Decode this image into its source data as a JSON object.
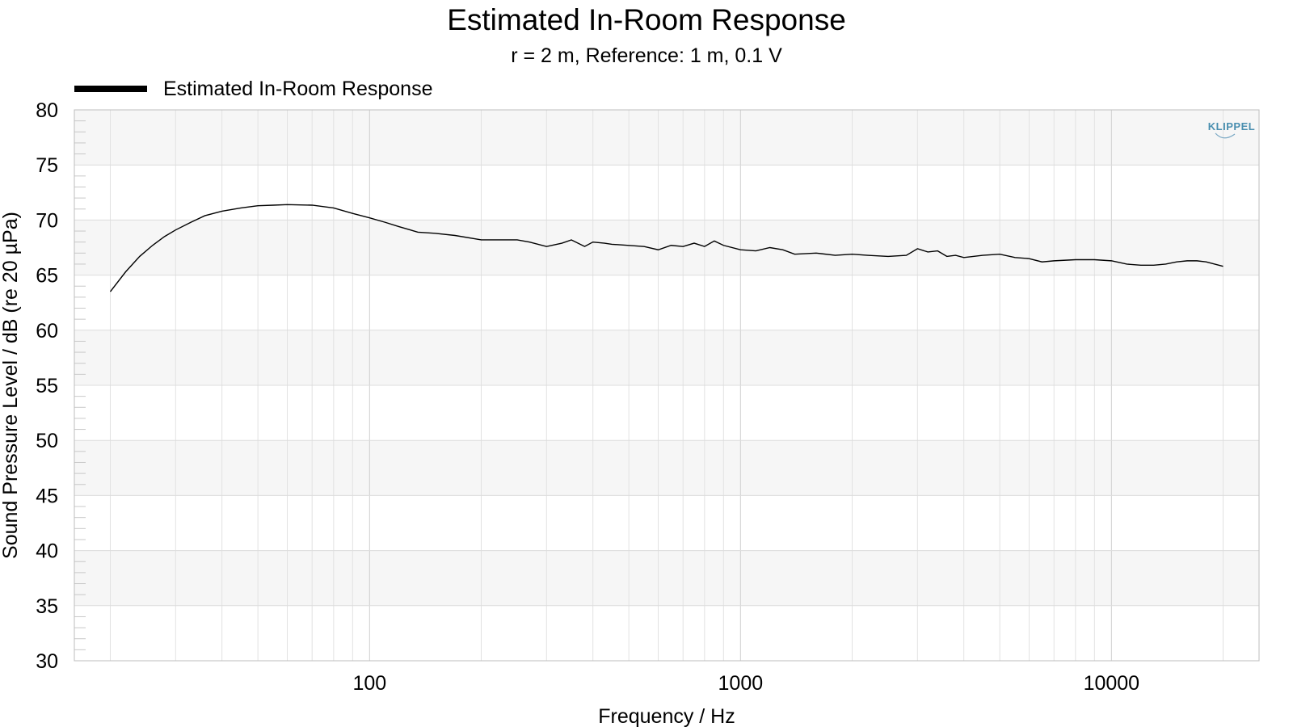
{
  "chart_data": {
    "type": "line",
    "title": "Estimated In-Room Response",
    "subtitle": "r = 2 m,  Reference: 1 m, 0.1 V",
    "xlabel": "Frequency / Hz",
    "ylabel": "Sound Pressure Level / dB (re 20 µPa)",
    "x_scale": "log",
    "xlim": [
      16,
      25000
    ],
    "ylim": [
      30,
      80
    ],
    "x_ticks": [
      100,
      1000,
      10000
    ],
    "x_tick_labels": [
      "100",
      "1000",
      "10000"
    ],
    "y_ticks": [
      30,
      35,
      40,
      45,
      50,
      55,
      60,
      65,
      70,
      75,
      80
    ],
    "y_tick_labels": [
      "30",
      "35",
      "40",
      "45",
      "50",
      "55",
      "60",
      "65",
      "70",
      "75",
      "80"
    ],
    "grid": true,
    "legend_position": "top-left",
    "watermark": "KLIPPEL",
    "series": [
      {
        "name": "Estimated In-Room Response",
        "color": "#000000",
        "x": [
          20,
          22,
          24,
          26,
          28,
          30,
          33,
          36,
          40,
          45,
          50,
          55,
          60,
          70,
          80,
          90,
          100,
          110,
          120,
          135,
          150,
          170,
          200,
          230,
          250,
          270,
          300,
          330,
          350,
          380,
          400,
          430,
          450,
          500,
          550,
          600,
          650,
          700,
          750,
          800,
          850,
          900,
          1000,
          1100,
          1200,
          1300,
          1400,
          1600,
          1800,
          2000,
          2200,
          2500,
          2800,
          3000,
          3200,
          3400,
          3600,
          3800,
          4000,
          4500,
          5000,
          5500,
          6000,
          6500,
          7000,
          8000,
          9000,
          10000,
          11000,
          12000,
          13000,
          14000,
          15000,
          16000,
          17000,
          18000,
          20000
        ],
        "values": [
          63.5,
          65.3,
          66.7,
          67.7,
          68.5,
          69.1,
          69.8,
          70.4,
          70.8,
          71.1,
          71.3,
          71.35,
          71.4,
          71.35,
          71.1,
          70.6,
          70.2,
          69.8,
          69.4,
          68.9,
          68.8,
          68.6,
          68.2,
          68.2,
          68.2,
          68.0,
          67.6,
          67.9,
          68.2,
          67.6,
          68.0,
          67.9,
          67.8,
          67.7,
          67.6,
          67.3,
          67.7,
          67.6,
          67.9,
          67.6,
          68.1,
          67.7,
          67.3,
          67.2,
          67.5,
          67.3,
          66.9,
          67.0,
          66.8,
          66.9,
          66.8,
          66.7,
          66.8,
          67.4,
          67.1,
          67.2,
          66.7,
          66.8,
          66.6,
          66.8,
          66.9,
          66.6,
          66.5,
          66.2,
          66.3,
          66.4,
          66.4,
          66.3,
          66.0,
          65.9,
          65.9,
          66.0,
          66.2,
          66.3,
          66.3,
          66.2,
          65.8
        ]
      }
    ]
  }
}
